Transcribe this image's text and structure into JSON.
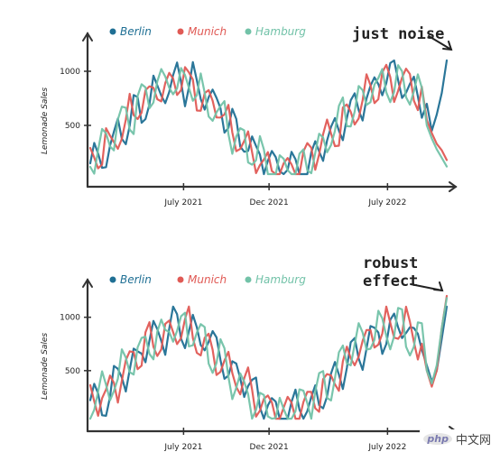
{
  "colors": {
    "berlin": "#1f6f94",
    "munich": "#e05a55",
    "hamburg": "#72c2a8",
    "axis": "#333333"
  },
  "watermark": {
    "logo_text": "php",
    "text": "中文网"
  },
  "chart_data": [
    {
      "type": "line",
      "title": "",
      "xlabel": "",
      "ylabel": "Lemonade Sales",
      "x_range": [
        "2021-01-15",
        "2022-10-15"
      ],
      "xticks": [
        {
          "date": "2021-07-01",
          "label": "July 2021"
        },
        {
          "date": "2021-12-01",
          "label": "Dec 2021"
        },
        {
          "date": "2022-07-01",
          "label": "July 2022"
        }
      ],
      "yticks": [
        500,
        1000
      ],
      "ylim": [
        0,
        1200
      ],
      "grid": false,
      "legend_position": "top-left",
      "annotation": "just noise",
      "series": [
        {
          "name": "Berlin",
          "color_key": "berlin",
          "tail": [
            700,
            450,
            600,
            800,
            1100
          ]
        },
        {
          "name": "Munich",
          "color_key": "munich",
          "tail": [
            550,
            430,
            330,
            270,
            180
          ]
        },
        {
          "name": "Hamburg",
          "color_key": "hamburg",
          "tail": [
            500,
            380,
            280,
            200,
            120
          ]
        }
      ]
    },
    {
      "type": "line",
      "title": "",
      "xlabel": "",
      "ylabel": "Lemonade Sales",
      "x_range": [
        "2021-01-15",
        "2022-10-15"
      ],
      "xticks": [
        {
          "date": "2021-07-01",
          "label": "July 2021"
        },
        {
          "date": "2021-12-01",
          "label": "Dec 2021"
        },
        {
          "date": "2022-07-01",
          "label": "July 2022"
        }
      ],
      "yticks": [
        500,
        1000
      ],
      "ylim": [
        0,
        1200
      ],
      "grid": false,
      "legend_position": "top-left",
      "annotation": "robust effect",
      "series": [
        {
          "name": "Berlin",
          "color_key": "berlin",
          "tail": [
            550,
            400,
            500,
            800,
            1100
          ]
        },
        {
          "name": "Munich",
          "color_key": "munich",
          "tail": [
            500,
            350,
            500,
            900,
            1200
          ]
        },
        {
          "name": "Hamburg",
          "color_key": "hamburg",
          "tail": [
            500,
            380,
            550,
            900,
            1180
          ]
        }
      ]
    }
  ]
}
